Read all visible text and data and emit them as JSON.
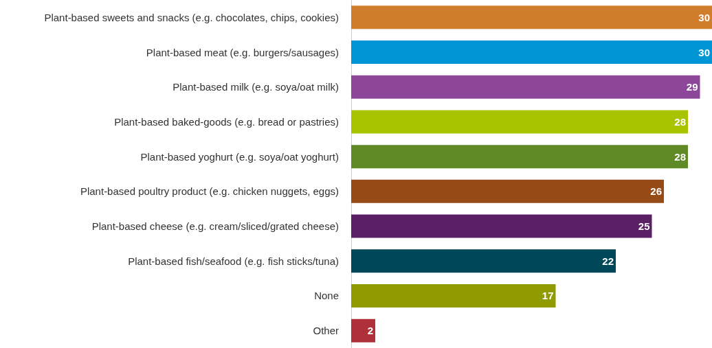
{
  "chart_data": {
    "type": "bar",
    "orientation": "horizontal",
    "data_labels": true,
    "categories": [
      "Plant-based sweets and snacks (e.g. chocolates, chips, cookies)",
      "Plant-based meat (e.g. burgers/sausages)",
      "Plant-based milk (e.g. soya/oat milk)",
      "Plant-based baked-goods (e.g. bread or pastries)",
      "Plant-based yoghurt (e.g. soya/oat yoghurt)",
      "Plant-based poultry product (e.g. chicken nuggets, eggs)",
      "Plant-based cheese (e.g. cream/sliced/grated cheese)",
      "Plant-based fish/seafood (e.g. fish sticks/tuna)",
      "None",
      "Other"
    ],
    "values": [
      30,
      30,
      29,
      28,
      28,
      26,
      25,
      22,
      17,
      2
    ],
    "colors": [
      "#d07d2c",
      "#0096d6",
      "#8c4799",
      "#a8c300",
      "#5f8a26",
      "#964b16",
      "#5b1f65",
      "#00475a",
      "#8f9b00",
      "#b0303a"
    ]
  }
}
